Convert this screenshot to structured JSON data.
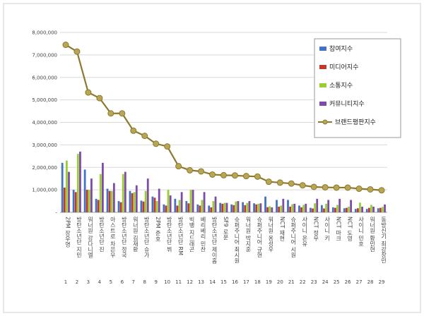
{
  "chart_data": {
    "type": "bar",
    "ylim": [
      0,
      8000000
    ],
    "yticks": [
      "-",
      "1,000,000",
      "2,000,000",
      "3,000,000",
      "4,000,000",
      "5,000,000",
      "6,000,000",
      "7,000,000",
      "8,000,000"
    ],
    "grid": true,
    "legend_position": "top-right",
    "indices": [
      "1",
      "2",
      "3",
      "4",
      "5",
      "6",
      "7",
      "8",
      "9",
      "10",
      "11",
      "12",
      "13",
      "14",
      "15",
      "16",
      "17",
      "18",
      "19",
      "20",
      "21",
      "22",
      "23",
      "24",
      "25",
      "26",
      "27",
      "28",
      "29"
    ],
    "categories": [
      "2PM 장우영",
      "방탄소년단 지민",
      "워너원 강다니엘",
      "방탄소년단 진",
      "아스트로 차은우",
      "방탄소년단 정국",
      "워너원 김재환",
      "방탄소년단 슈가",
      "2PM 준호",
      "방탄소년단 뷔",
      "방탄소년단 RM",
      "빅뱅 지드래곤",
      "베리베리 민찬",
      "방탄소년단 제이홉",
      "SF9 로운",
      "슈퍼주니어 최시원",
      "워너원 박지훈",
      "슈퍼주니어 규현",
      "워너원 옹성우",
      "NCT 재현",
      "슈퍼주니어 시원",
      "샤이니 온유",
      "NCT 정우",
      "샤이니 키",
      "NCT 마크",
      "NCT 도영",
      "샤이니 민호",
      "워너원 황민현",
      "동방신기 최강창민"
    ],
    "series": [
      {
        "name": "참여지수",
        "color": "#4472C4",
        "values": [
          2200000,
          1000000,
          1900000,
          600000,
          1050000,
          500000,
          950000,
          520000,
          700000,
          350000,
          600000,
          500000,
          350000,
          300000,
          420000,
          350000,
          450000,
          400000,
          700000,
          550000,
          550000,
          300000,
          200000,
          320000,
          220000,
          180000,
          150000,
          150000,
          180000
        ]
      },
      {
        "name": "미디어지수",
        "color": "#C0392B",
        "values": [
          1100000,
          900000,
          1000000,
          550000,
          950000,
          450000,
          850000,
          480000,
          650000,
          300000,
          300000,
          400000,
          300000,
          220000,
          380000,
          320000,
          320000,
          350000,
          230000,
          250000,
          250000,
          220000,
          170000,
          170000,
          200000,
          200000,
          180000,
          200000,
          200000
        ]
      },
      {
        "name": "소통지수",
        "color": "#9ACD32",
        "values": [
          2300000,
          2600000,
          1000000,
          1700000,
          950000,
          1700000,
          900000,
          950000,
          500000,
          1000000,
          550000,
          1000000,
          550000,
          500000,
          420000,
          480000,
          420000,
          380000,
          270000,
          300000,
          360000,
          330000,
          400000,
          380000,
          330000,
          250000,
          430000,
          330000,
          240000
        ]
      },
      {
        "name": "커뮤니티지수",
        "color": "#7D4BA8",
        "values": [
          1800000,
          2700000,
          1500000,
          2200000,
          1300000,
          1800000,
          1200000,
          1500000,
          1050000,
          750000,
          900000,
          1000000,
          900000,
          700000,
          420000,
          500000,
          500000,
          400000,
          220000,
          600000,
          380000,
          380000,
          600000,
          550000,
          600000,
          550000,
          250000,
          250000,
          350000
        ]
      }
    ],
    "line": {
      "name": "브랜드평판지수",
      "color": "#8B7A2E",
      "values": [
        7450000,
        7150000,
        5330000,
        5080000,
        4400000,
        4400000,
        3630000,
        3400000,
        3050000,
        2930000,
        2050000,
        1870000,
        1820000,
        1680000,
        1650000,
        1640000,
        1610000,
        1590000,
        1360000,
        1320000,
        1280000,
        1200000,
        1130000,
        1110000,
        1100000,
        1100000,
        1050000,
        1020000,
        980000
      ]
    }
  }
}
